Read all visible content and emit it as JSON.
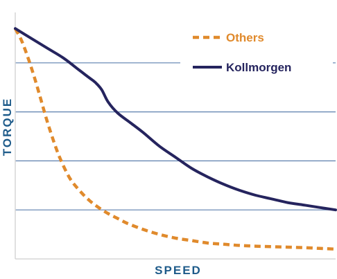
{
  "chart_data": {
    "type": "line",
    "xlabel": "SPEED",
    "ylabel": "TORQUE",
    "xlim": [
      0,
      100
    ],
    "ylim": [
      0,
      100
    ],
    "grid": "horizontal",
    "y_gridlines": [
      20,
      40,
      60,
      80
    ],
    "legend_position": "top-right",
    "series": [
      {
        "name": "Others",
        "style": "dashed",
        "color": "#e08a2c",
        "x": [
          0,
          2,
          4,
          6,
          8,
          10,
          12,
          14,
          17,
          20,
          23,
          26,
          29,
          32,
          35,
          40,
          45,
          50,
          55,
          60,
          65,
          70,
          75,
          80,
          85,
          90,
          95,
          100
        ],
        "y": [
          94,
          89,
          82,
          74,
          65,
          56,
          48,
          41,
          33,
          28,
          24,
          21,
          18.5,
          16.5,
          14.5,
          12,
          10,
          8.5,
          7.5,
          6.5,
          6,
          5.5,
          5.2,
          5,
          4.8,
          4.6,
          4.3,
          4
        ]
      },
      {
        "name": "Kollmorgen",
        "style": "solid",
        "color": "#25245e",
        "x": [
          0,
          5,
          10,
          15,
          20,
          23,
          25,
          27,
          29,
          32,
          36,
          40,
          45,
          50,
          55,
          60,
          65,
          70,
          75,
          80,
          85,
          90,
          95,
          100
        ],
        "y": [
          94,
          90,
          86,
          82,
          77,
          74,
          72,
          69,
          64,
          59.5,
          55.5,
          51.5,
          46,
          41.5,
          37,
          33.5,
          30.5,
          28,
          26,
          24.5,
          23,
          22,
          21,
          20
        ]
      }
    ]
  }
}
